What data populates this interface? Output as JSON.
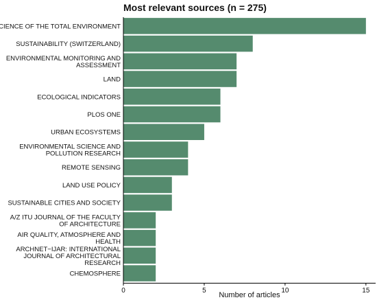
{
  "chart_data": {
    "type": "bar",
    "orientation": "horizontal",
    "title": "Most relevant sources (n = 275)",
    "xlabel": "Number of articles",
    "ylabel": "",
    "xlim": [
      0,
      15.6
    ],
    "x_ticks": [
      0,
      5,
      10,
      15
    ],
    "grid": false,
    "legend": "none",
    "bar_color": "#558b6e",
    "categories": [
      [
        "SCIENCE OF THE TOTAL ENVIRONMENT"
      ],
      [
        "SUSTAINABILITY (SWITZERLAND)"
      ],
      [
        "ENVIRONMENTAL MONITORING AND",
        "ASSESSMENT"
      ],
      [
        "LAND"
      ],
      [
        "ECOLOGICAL INDICATORS"
      ],
      [
        "PLOS ONE"
      ],
      [
        "URBAN ECOSYSTEMS"
      ],
      [
        "ENVIRONMENTAL SCIENCE AND",
        "POLLUTION RESEARCH"
      ],
      [
        "REMOTE SENSING"
      ],
      [
        "LAND USE POLICY"
      ],
      [
        "SUSTAINABLE CITIES AND SOCIETY"
      ],
      [
        "A/Z ITU JOURNAL OF THE FACULTY",
        "OF ARCHITECTURE"
      ],
      [
        "AIR QUALITY, ATMOSPHERE AND",
        "HEALTH"
      ],
      [
        "ARCHNET−IJAR: INTERNATIONAL",
        "JOURNAL OF ARCHITECTURAL",
        "RESEARCH"
      ],
      [
        "CHEMOSPHERE"
      ]
    ],
    "values": [
      15,
      8,
      7,
      7,
      6,
      6,
      5,
      4,
      4,
      3,
      3,
      2,
      2,
      2,
      2
    ]
  }
}
